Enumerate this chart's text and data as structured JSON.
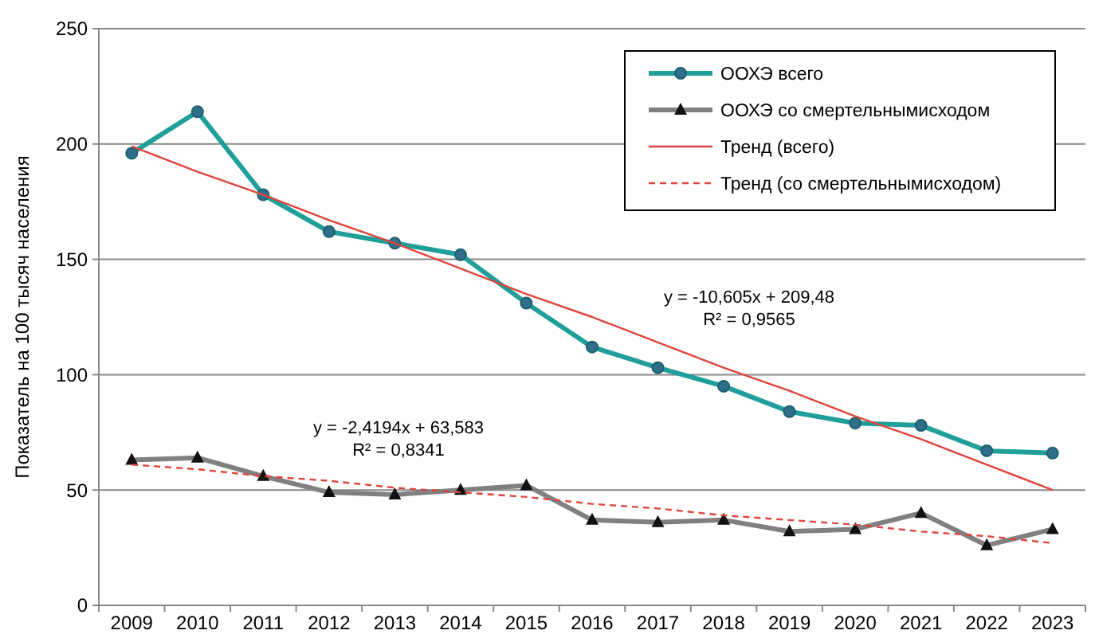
{
  "chart_data": {
    "type": "line",
    "ylabel": "Показатель на 100 тысяч населения",
    "categories": [
      "2009",
      "2010",
      "2011",
      "2012",
      "2013",
      "2014",
      "2015",
      "2016",
      "2017",
      "2018",
      "2019",
      "2020",
      "2021",
      "2022",
      "2023"
    ],
    "series": [
      {
        "name": "ООХЭ всего",
        "color": "#1f9e9a",
        "marker": "circle",
        "line_style": "solid",
        "values": [
          196,
          214,
          178,
          162,
          157,
          152,
          131,
          112,
          103,
          95,
          84,
          79,
          78,
          67,
          66
        ]
      },
      {
        "name": "ООХЭ со смертельнымисходом",
        "color": "#808080",
        "marker": "triangle",
        "line_style": "solid",
        "values": [
          63,
          64,
          56,
          49,
          48,
          50,
          52,
          37,
          36,
          37,
          32,
          33,
          40,
          26,
          33
        ]
      },
      {
        "name": "Тренд (всего)",
        "color": "#e0443c",
        "marker": "none",
        "line_style": "solid",
        "values": [
          199,
          188,
          178,
          167,
          157,
          146,
          135,
          125,
          114,
          103,
          93,
          82,
          72,
          61,
          50
        ]
      },
      {
        "name": "Тренд (со смертельнымисходом)",
        "color": "#e0443c",
        "marker": "none",
        "line_style": "dashed",
        "values": [
          61,
          59,
          56,
          54,
          51,
          49,
          47,
          44,
          42,
          39,
          37,
          35,
          32,
          30,
          27
        ]
      }
    ],
    "ylim": [
      0,
      250
    ],
    "yticks": [
      0,
      50,
      100,
      150,
      200,
      250
    ],
    "grid": "y",
    "legend": "top right",
    "annotations": [
      "y = -2,4194x + 63,583\nR² = 0,8341",
      "y = -10,605x + 209,48\nR² = 0,9565"
    ]
  }
}
